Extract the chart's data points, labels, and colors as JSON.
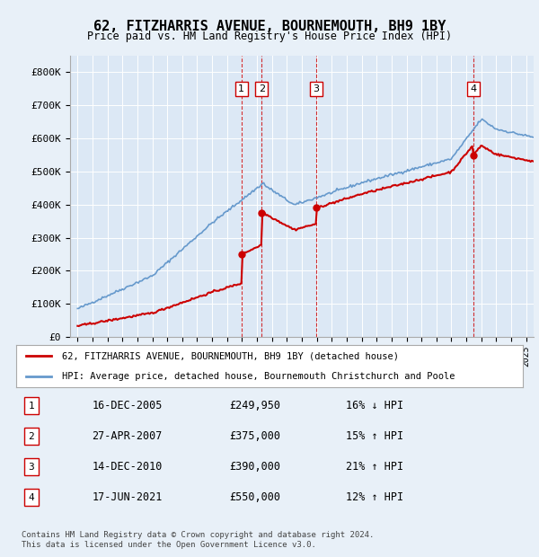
{
  "title": "62, FITZHARRIS AVENUE, BOURNEMOUTH, BH9 1BY",
  "subtitle": "Price paid vs. HM Land Registry's House Price Index (HPI)",
  "background_color": "#e8f0f8",
  "plot_bg_color": "#dce8f5",
  "ylim": [
    0,
    850000
  ],
  "yticks": [
    0,
    100000,
    200000,
    300000,
    400000,
    500000,
    600000,
    700000,
    800000
  ],
  "ytick_labels": [
    "£0",
    "£100K",
    "£200K",
    "£300K",
    "£400K",
    "£500K",
    "£600K",
    "£700K",
    "£800K"
  ],
  "purchases": [
    {
      "num": 1,
      "date": "16-DEC-2005",
      "year": 2005.96,
      "price": 249950,
      "pct": "16%",
      "dir": "↓"
    },
    {
      "num": 2,
      "date": "27-APR-2007",
      "year": 2007.32,
      "price": 375000,
      "pct": "15%",
      "dir": "↑"
    },
    {
      "num": 3,
      "date": "14-DEC-2010",
      "year": 2010.96,
      "price": 390000,
      "pct": "21%",
      "dir": "↑"
    },
    {
      "num": 4,
      "date": "17-JUN-2021",
      "year": 2021.46,
      "price": 550000,
      "pct": "12%",
      "dir": "↑"
    }
  ],
  "legend_property": "62, FITZHARRIS AVENUE, BOURNEMOUTH, BH9 1BY (detached house)",
  "legend_hpi": "HPI: Average price, detached house, Bournemouth Christchurch and Poole",
  "footer": "Contains HM Land Registry data © Crown copyright and database right 2024.\nThis data is licensed under the Open Government Licence v3.0.",
  "property_color": "#cc0000",
  "hpi_color": "#6699cc",
  "vline_color": "#cc0000",
  "marker_color": "#cc0000"
}
